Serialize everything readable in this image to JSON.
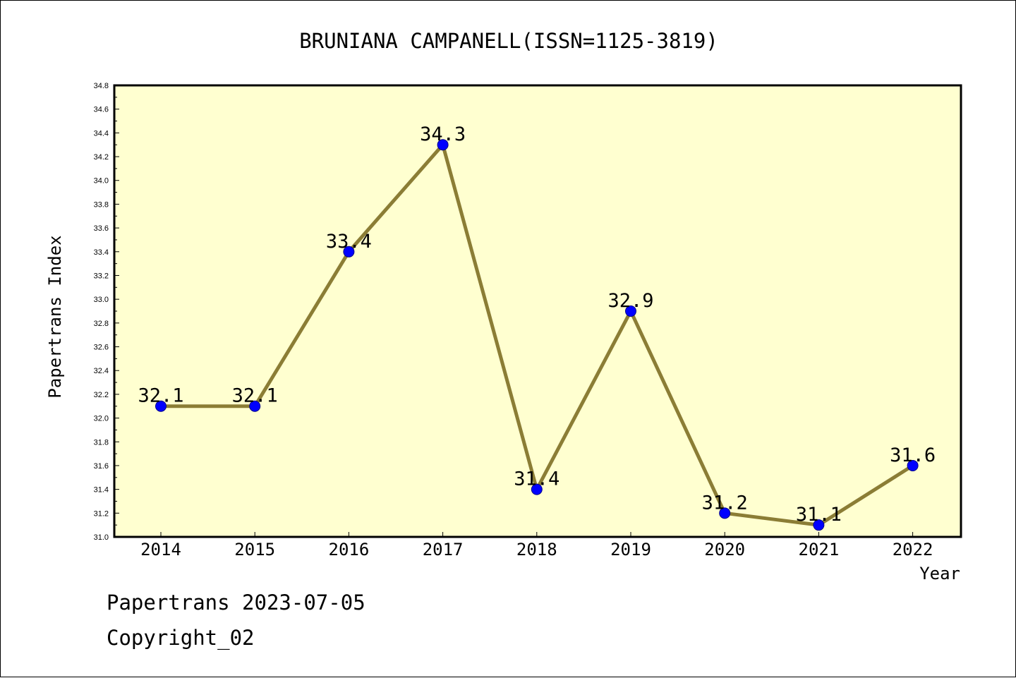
{
  "chart_data": {
    "type": "line",
    "title": "BRUNIANA CAMPANELL(ISSN=1125-3819)",
    "xlabel": "Year",
    "ylabel": "Papertrans Index",
    "categories": [
      "2014",
      "2015",
      "2016",
      "2017",
      "2018",
      "2019",
      "2020",
      "2021",
      "2022"
    ],
    "series": [
      {
        "values": [
          32.1,
          32.1,
          33.4,
          34.3,
          31.4,
          32.9,
          31.2,
          31.1,
          31.6
        ]
      }
    ],
    "data_labels": [
      "32.1",
      "32.1",
      "33.4",
      "34.3",
      "31.4",
      "32.9",
      "31.2",
      "31.1",
      "31.6"
    ],
    "ylim": [
      31.0,
      34.8
    ],
    "y_ticks": [
      "31.0",
      "31.2",
      "31.4",
      "31.6",
      "31.8",
      "32.0",
      "32.2",
      "32.4",
      "32.6",
      "32.8",
      "33.0",
      "33.2",
      "33.4",
      "33.6",
      "33.8",
      "34.0",
      "34.2",
      "34.4",
      "34.6",
      "34.8"
    ],
    "grid": false,
    "legend": "none",
    "colors": {
      "plot_background": "#ffffd0",
      "line": "#8b7d35",
      "marker": "#0000ff"
    }
  },
  "footer": {
    "source": "Papertrans 2023-07-05",
    "copyright": "Copyright_02"
  }
}
